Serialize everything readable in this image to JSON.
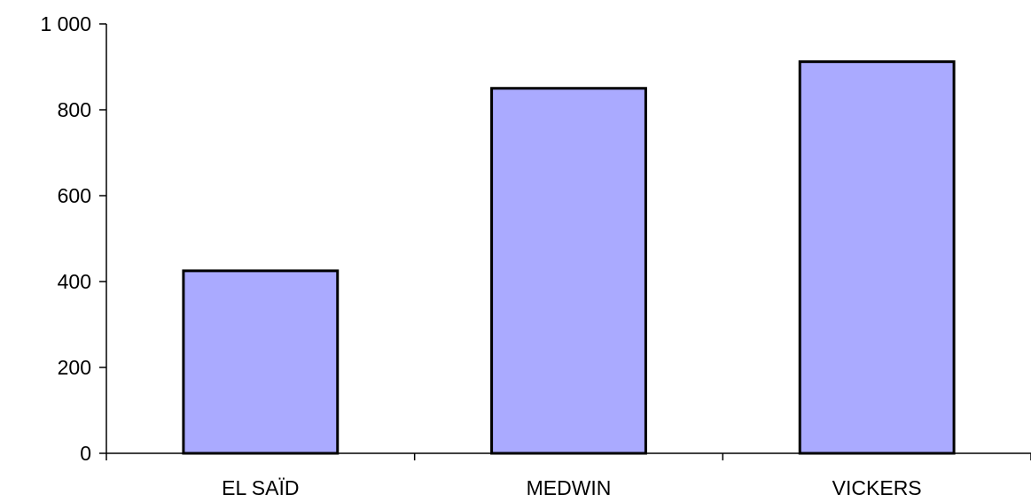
{
  "chart_data": {
    "type": "bar",
    "categories": [
      "EL SAÏD",
      "MEDWIN",
      "VICKERS"
    ],
    "values": [
      425,
      850,
      912
    ],
    "title": "",
    "xlabel": "",
    "ylabel": "",
    "ylim": [
      0,
      1000
    ],
    "yticks": [
      0,
      200,
      400,
      600,
      800,
      1000
    ],
    "ytick_labels": [
      "0",
      "200",
      "400",
      "600",
      "800",
      "1 000"
    ],
    "bar_color": "#AAAAFF",
    "bar_edge_color": "#000000",
    "grid": false,
    "legend": "none"
  }
}
